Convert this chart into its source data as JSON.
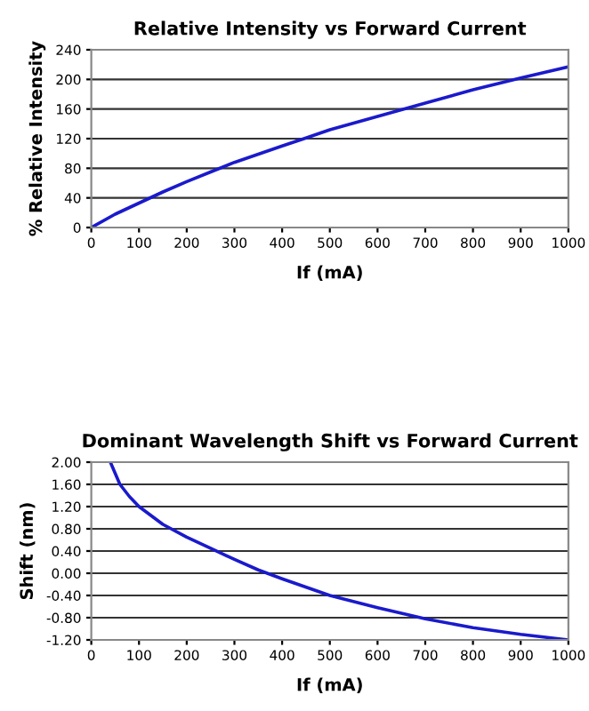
{
  "chart_data": [
    {
      "type": "line",
      "title": "Relative Intensity vs Forward Current",
      "xlabel": "If (mA)",
      "ylabel": "% Relative Intensity",
      "x": [
        0,
        50,
        100,
        150,
        200,
        250,
        300,
        350,
        400,
        450,
        500,
        600,
        700,
        800,
        900,
        1000
      ],
      "series": [
        {
          "color": "#1a1acc",
          "values": [
            0,
            18,
            33,
            48,
            62,
            75,
            88,
            99,
            110,
            121,
            132,
            150,
            168,
            186,
            202,
            217
          ]
        }
      ],
      "xlim": [
        0,
        1000
      ],
      "xticks": [
        0,
        100,
        200,
        300,
        400,
        500,
        600,
        700,
        800,
        900,
        1000
      ],
      "ylim": [
        0,
        240
      ],
      "yticks": [
        0,
        40,
        80,
        120,
        160,
        200,
        240
      ],
      "grid": "y",
      "marker": "none",
      "line_style": "solid"
    },
    {
      "type": "line",
      "title": "Dominant Wavelength Shift vs Forward Current",
      "xlabel": "If (mA)",
      "ylabel": "Shift (nm)",
      "x": [
        40,
        60,
        80,
        100,
        150,
        200,
        250,
        300,
        350,
        400,
        500,
        600,
        700,
        800,
        900,
        1000
      ],
      "series": [
        {
          "color": "#1a1acc",
          "values": [
            2.0,
            1.6,
            1.38,
            1.2,
            0.88,
            0.65,
            0.45,
            0.25,
            0.06,
            -0.1,
            -0.4,
            -0.62,
            -0.82,
            -0.98,
            -1.1,
            -1.2
          ]
        }
      ],
      "xlim": [
        0,
        1000
      ],
      "xticks": [
        0,
        100,
        200,
        300,
        400,
        500,
        600,
        700,
        800,
        900,
        1000
      ],
      "ylim": [
        -1.2,
        2.0
      ],
      "yticks": [
        {
          "value": -1.2,
          "label": "-1.20"
        },
        {
          "value": -0.8,
          "label": "-0.80"
        },
        {
          "value": -0.4,
          "label": "-0.40"
        },
        {
          "value": 0,
          "label": "0.00"
        },
        {
          "value": 0.4,
          "label": "0.40"
        },
        {
          "value": 0.8,
          "label": "0.80"
        },
        {
          "value": 1.2,
          "label": "1.20"
        },
        {
          "value": 1.6,
          "label": "1.60"
        },
        {
          "value": 2.0,
          "label": "2.00"
        }
      ],
      "grid": "y",
      "marker": "none",
      "line_style": "solid"
    }
  ]
}
